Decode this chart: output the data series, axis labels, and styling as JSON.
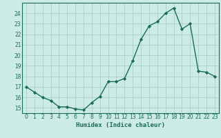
{
  "x": [
    0,
    1,
    2,
    3,
    4,
    5,
    6,
    7,
    8,
    9,
    10,
    11,
    12,
    13,
    14,
    15,
    16,
    17,
    18,
    19,
    20,
    21,
    22,
    23
  ],
  "y": [
    17.0,
    16.5,
    16.0,
    15.7,
    15.1,
    15.1,
    14.9,
    14.8,
    15.5,
    16.1,
    17.5,
    17.5,
    17.8,
    19.5,
    21.5,
    22.8,
    23.2,
    24.0,
    24.5,
    22.5,
    23.0,
    18.5,
    18.4,
    18.0
  ],
  "line_color": "#1a6b5a",
  "marker": "D",
  "marker_size": 2.2,
  "bg_color": "#cceae6",
  "grid_color": "#aacfcb",
  "xlabel": "Humidex (Indice chaleur)",
  "xlim": [
    -0.5,
    23.5
  ],
  "ylim": [
    14.5,
    25.0
  ],
  "yticks": [
    15,
    16,
    17,
    18,
    19,
    20,
    21,
    22,
    23,
    24
  ],
  "xticks": [
    0,
    1,
    2,
    3,
    4,
    5,
    6,
    7,
    8,
    9,
    10,
    11,
    12,
    13,
    14,
    15,
    16,
    17,
    18,
    19,
    20,
    21,
    22,
    23
  ],
  "tick_fontsize": 5.5,
  "label_fontsize": 6.5,
  "line_width": 1.0
}
